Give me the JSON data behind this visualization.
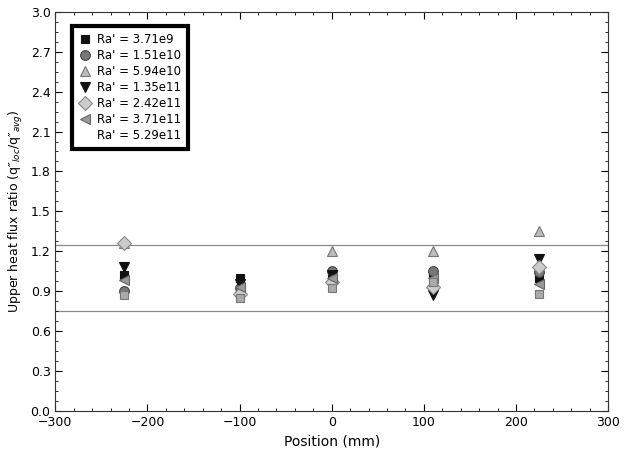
{
  "title": "",
  "xlabel": "Position (mm)",
  "ylabel": "Upper heat flux ratio (q″_loc/q″_avg)",
  "xlim": [
    -300,
    300
  ],
  "ylim": [
    0.0,
    3.0
  ],
  "xticks": [
    -300,
    -200,
    -100,
    0,
    100,
    200,
    300
  ],
  "yticks": [
    0.0,
    0.3,
    0.6,
    0.9,
    1.2,
    1.5,
    1.8,
    2.1,
    2.4,
    2.7,
    3.0
  ],
  "hlines": [
    0.75,
    1.25
  ],
  "series": [
    {
      "label": "Ra' = 3.71e9",
      "x": [
        -225,
        -100,
        0,
        110,
        225
      ],
      "y": [
        1.02,
        1.0,
        1.02,
        1.01,
        1.0
      ]
    },
    {
      "label": "Ra' = 1.51e10",
      "x": [
        -225,
        -100,
        0,
        110,
        225
      ],
      "y": [
        0.9,
        0.92,
        1.05,
        1.05,
        1.04
      ]
    },
    {
      "label": "Ra' = 5.94e10",
      "x": [
        -225,
        -100,
        0,
        110,
        225
      ],
      "y": [
        1.26,
        0.92,
        1.2,
        1.2,
        1.35
      ]
    },
    {
      "label": "Ra' = 1.35e11",
      "x": [
        -225,
        -100,
        0,
        110,
        225
      ],
      "y": [
        1.08,
        0.95,
        1.02,
        0.87,
        1.14
      ]
    },
    {
      "label": "Ra' = 2.42e11",
      "x": [
        -225,
        -100,
        0,
        110,
        225
      ],
      "y": [
        1.26,
        0.88,
        0.97,
        0.93,
        1.08
      ]
    },
    {
      "label": "Ra' = 3.71e11",
      "x": [
        -225,
        -100,
        0,
        110,
        225
      ],
      "y": [
        0.98,
        0.93,
        1.0,
        1.0,
        0.95
      ]
    },
    {
      "label": "Ra' = 5.29e11",
      "x": [
        -225,
        -100,
        0,
        110,
        225
      ],
      "y": [
        0.87,
        0.85,
        0.92,
        0.97,
        0.88
      ]
    }
  ],
  "hline_color": "#888888",
  "hline_lw": 0.9
}
